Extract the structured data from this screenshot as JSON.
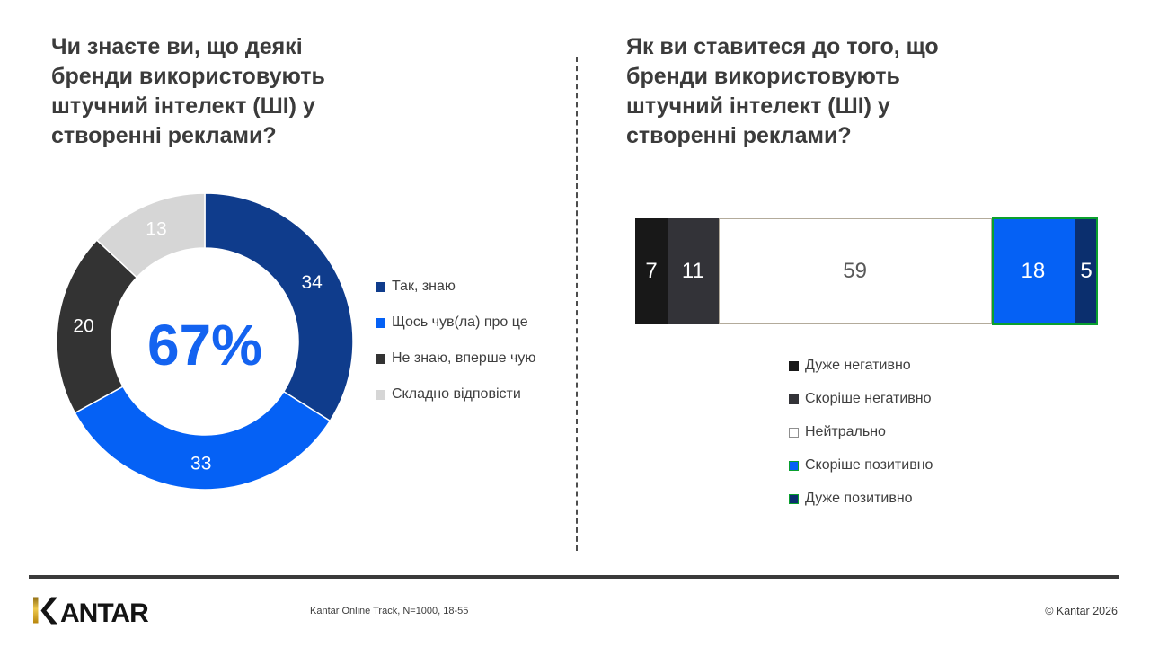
{
  "chart_data": [
    {
      "type": "pie",
      "subtype": "donut",
      "title": "Чи знаєте ви, що деякі бренди використовують штучний інтелект (ШІ) у створенні реклами?",
      "center_label": "67%",
      "center_label_color": "#1463f0",
      "legend_position": "right",
      "segments": [
        {
          "label": "Так, знаю",
          "value": 34,
          "color": "#0f3c8c",
          "label_color": "#ffffff"
        },
        {
          "label": "Щось чув(ла) про це",
          "value": 33,
          "color": "#0561f5",
          "label_color": "#ffffff"
        },
        {
          "label": "Не знаю, вперше чую",
          "value": 20,
          "color": "#333333",
          "label_color": "#ffffff"
        },
        {
          "label": "Складно відповісти",
          "value": 13,
          "color": "#d6d6d6",
          "label_color": "#ffffff"
        }
      ]
    },
    {
      "type": "bar",
      "subtype": "stacked-horizontal-100",
      "title": "Як ви ставитеся до того, що бренди використовують штучний інтелект (ШІ) у створенні реклами?",
      "legend_position": "bottom",
      "axis_range": [
        0,
        100
      ],
      "highlight_border_color": "#0a9f2e",
      "neutral_border_color": "#b3ab9b",
      "segments": [
        {
          "label": "Дуже негативно",
          "value": 7,
          "color": "#181818",
          "label_color": "#ffffff"
        },
        {
          "label": "Скоріше негативно",
          "value": 11,
          "color": "#333338",
          "label_color": "#ffffff"
        },
        {
          "label": "Нейтрально",
          "value": 59,
          "color": "#ffffff",
          "label_color": "#595959",
          "bordered": true,
          "swatch_border": "#8f8f8f"
        },
        {
          "label": "Скоріше позитивно",
          "value": 18,
          "color": "#0561f5",
          "label_color": "#ffffff",
          "highlight": true
        },
        {
          "label": "Дуже позитивно",
          "value": 5,
          "color": "#0b2f6e",
          "label_color": "#ffffff",
          "highlight": true
        }
      ]
    }
  ],
  "footer": {
    "logo_text": "KANTAR",
    "logo_gold": "#d4a72c",
    "source_note": "Kantar Online Track, N=1000, 18-55",
    "copyright": "© Kantar 2026"
  }
}
